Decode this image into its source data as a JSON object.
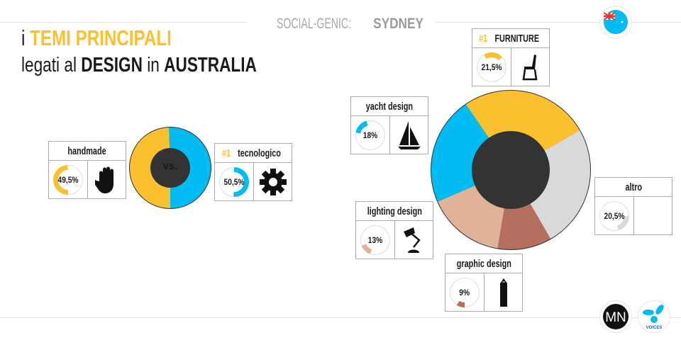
{
  "header": {
    "brand": "SOCIAL-GENIC:",
    "city": "SYDNEY"
  },
  "heading": {
    "line1_prefix": "i",
    "line1_highlight": "TEMI PRINCIPALI",
    "line2_a": "legati al",
    "line2_b": "DESIGN",
    "line2_c": "in",
    "line2_d": "AUSTRALIA"
  },
  "colors": {
    "yellow": "#fbc02d",
    "blue": "#00bcf2",
    "gray": "#d9d9d9",
    "tan": "#e0b298",
    "brown": "#b56f5f"
  },
  "chart_data": [
    {
      "type": "pie",
      "center_label": "vs.",
      "categories": [
        "handmade",
        "tecnologico"
      ],
      "values": [
        49.5,
        50.5
      ],
      "colors": [
        "#fbc02d",
        "#00bcf2"
      ],
      "cards": [
        {
          "name": "handmade",
          "rank": "",
          "value_label": "49,5%",
          "icon": "hand-icon"
        },
        {
          "name": "tecnologico",
          "rank": "#1",
          "value_label": "50,5%",
          "icon": "gear-icon"
        }
      ]
    },
    {
      "type": "pie",
      "categories": [
        "FURNITURE",
        "altro",
        "graphic design",
        "lighting design",
        "yacht design"
      ],
      "values": [
        21.5,
        20.5,
        9,
        13,
        18
      ],
      "colors": [
        "#fbc02d",
        "#d9d9d9",
        "#b56f5f",
        "#e0b298",
        "#00bcf2"
      ],
      "cards": [
        {
          "name": "FURNITURE",
          "rank": "#1",
          "value_label": "21,5%",
          "icon": "chair-icon"
        },
        {
          "name": "altro",
          "rank": "",
          "value_label": "20,5%",
          "icon": ""
        },
        {
          "name": "graphic design",
          "rank": "",
          "value_label": "9%",
          "icon": "pencil-icon"
        },
        {
          "name": "lighting design",
          "rank": "",
          "value_label": "13%",
          "icon": "lamp-icon"
        },
        {
          "name": "yacht design",
          "rank": "",
          "value_label": "18%",
          "icon": "sailboat-icon"
        }
      ]
    }
  ],
  "logos": {
    "left": "MN",
    "right": "VOICES"
  }
}
